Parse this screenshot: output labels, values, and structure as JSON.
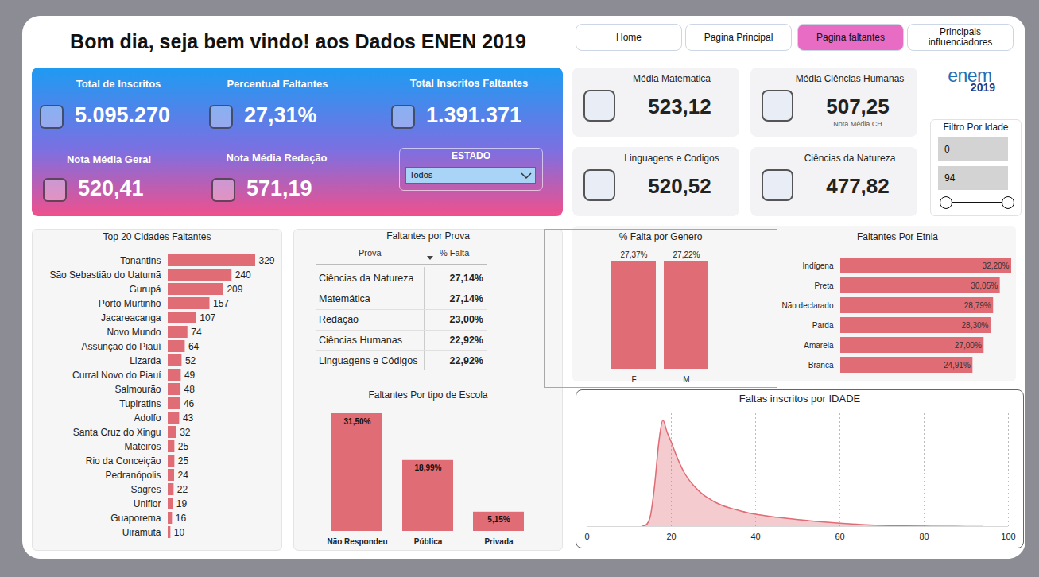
{
  "header": {
    "title": "Bom dia, seja bem vindo! aos Dados ENEN 2019"
  },
  "nav": [
    {
      "label": "Home",
      "active": false
    },
    {
      "label": "Pagina Principal",
      "active": false
    },
    {
      "label": "Pagina faltantes",
      "active": true
    },
    {
      "label": "Principais influenciadores",
      "active": false
    }
  ],
  "logo": {
    "text": "enem",
    "year": "2019"
  },
  "kpis": [
    {
      "label": "Total de Inscritos",
      "value": "5.095.270"
    },
    {
      "label": "Percentual Faltantes",
      "value": "27,31%"
    },
    {
      "label": "Total Inscritos Faltantes",
      "value": "1.391.371"
    },
    {
      "label": "Nota Média Geral",
      "value": "520,41"
    },
    {
      "label": "Nota Média Redação",
      "value": "571,19"
    }
  ],
  "estado_filter": {
    "label": "ESTADO",
    "value": "Todos"
  },
  "cards": [
    {
      "label": "Média Matematica",
      "value": "523,12"
    },
    {
      "label": "Média Ciências Humanas",
      "value": "507,25",
      "note": "Nota Média CH"
    },
    {
      "label": "Linguagens e Codigos",
      "value": "520,52"
    },
    {
      "label": "Ciências da Natureza",
      "value": "477,82"
    }
  ],
  "age_filter": {
    "title": "Filtro Por Idade",
    "min": "0",
    "max": "94"
  },
  "table": {
    "title": "Faltantes por Prova",
    "columns": [
      "Prova",
      "% Falta"
    ],
    "rows": [
      [
        "Ciências da Natureza",
        "27,14%"
      ],
      [
        "Matemática",
        "27,14%"
      ],
      [
        "Redação",
        "23,00%"
      ],
      [
        "Ciências Humanas",
        "22,92%"
      ],
      [
        "Linguagens e Códigos",
        "22,92%"
      ]
    ]
  },
  "chart_data": [
    {
      "type": "bar",
      "title": "Top 20 Cidades Faltantes",
      "orientation": "horizontal",
      "categories": [
        "Tonantins",
        "São Sebastião do Uatumã",
        "Gurupá",
        "Porto Murtinho",
        "Jacareacanga",
        "Novo Mundo",
        "Assunção do Piauí",
        "Lizarda",
        "Curral Novo do Piauí",
        "Salmourão",
        "Tupiratins",
        "Adolfo",
        "Santa Cruz do Xingu",
        "Mateiros",
        "Rio da Conceição",
        "Pedranópolis",
        "Sagres",
        "Uniflor",
        "Guaporema",
        "Uiramutã"
      ],
      "values": [
        329,
        240,
        209,
        157,
        107,
        74,
        64,
        52,
        49,
        48,
        46,
        43,
        32,
        25,
        25,
        24,
        22,
        19,
        16,
        10
      ],
      "color": "#e06c75",
      "xlim": [
        0,
        329
      ],
      "data_labels": true,
      "tick_labels": "y"
    },
    {
      "type": "bar",
      "title": "% Falta por Genero",
      "categories": [
        "F",
        "M"
      ],
      "values": [
        27.37,
        27.22
      ],
      "value_labels": [
        "27,37%",
        "27,22%"
      ],
      "color": "#e06c75",
      "ylim": [
        0,
        27.37
      ],
      "data_labels": true,
      "tick_labels": "x"
    },
    {
      "type": "bar",
      "title": "Faltantes Por Etnia",
      "orientation": "horizontal",
      "categories": [
        "Indígena",
        "Preta",
        "Não declarado",
        "Parda",
        "Amarela",
        "Branca"
      ],
      "values": [
        32.2,
        30.05,
        28.79,
        28.3,
        27.0,
        24.91
      ],
      "value_labels": [
        "32,20%",
        "30,05%",
        "28,79%",
        "28,30%",
        "27,00%",
        "24,91%"
      ],
      "color": "#e06c75",
      "xlim": [
        0,
        32.2
      ],
      "data_labels": true,
      "tick_labels": "y"
    },
    {
      "type": "bar",
      "title": "Faltantes Por tipo de Escola",
      "categories": [
        "Não Respondeu",
        "Pública",
        "Privada"
      ],
      "values": [
        31.5,
        18.99,
        5.15
      ],
      "value_labels": [
        "31,50%",
        "18,99%",
        "5,15%"
      ],
      "color": "#e06c75",
      "ylim": [
        0,
        31.5
      ],
      "data_labels": true,
      "tick_labels": "x"
    },
    {
      "type": "area",
      "title": "Faltas inscritos por IDADE",
      "x": [
        13,
        14,
        15,
        16,
        17,
        18,
        19,
        20,
        21,
        22,
        23,
        24,
        25,
        26,
        27,
        28,
        29,
        30,
        32,
        35,
        38,
        40,
        45,
        50,
        55,
        60,
        65,
        70,
        75,
        80,
        85,
        90,
        94
      ],
      "values": [
        300,
        2500,
        15000,
        60000,
        125000,
        160000,
        142000,
        127000,
        110000,
        95000,
        82000,
        72000,
        64000,
        57000,
        51000,
        46000,
        42000,
        38000,
        32000,
        26000,
        21000,
        18500,
        14000,
        10500,
        7500,
        5000,
        3000,
        1800,
        1000,
        500,
        250,
        100,
        50
      ],
      "color": "#e06c75",
      "xlim": [
        0,
        100
      ],
      "xticks": [
        0,
        20,
        40,
        60,
        80,
        100
      ],
      "ylim": [
        0,
        170000
      ],
      "grid": true,
      "tick_labels": "x"
    }
  ]
}
